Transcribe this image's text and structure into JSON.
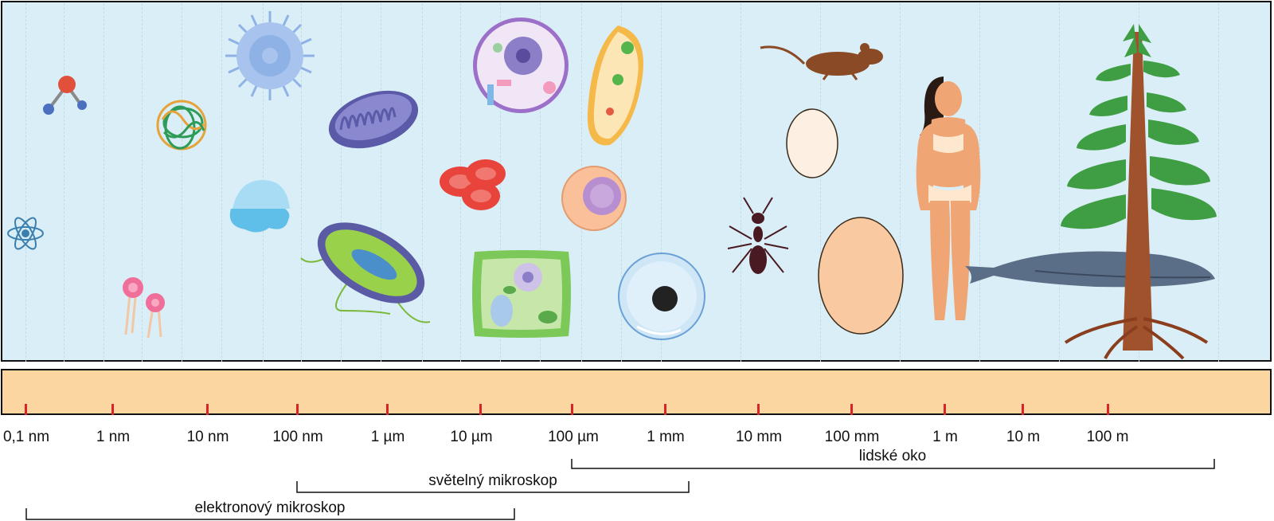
{
  "scale": {
    "ticks": [
      "0,1 nm",
      "1 nm",
      "10 nm",
      "100 nm",
      "1 µm",
      "10 µm",
      "100 µm",
      "1 mm",
      "10 mm",
      "100 mm",
      "1 m",
      "10 m",
      "100 m"
    ]
  },
  "ranges": {
    "eye": "lidské oko",
    "light_microscope": "světelný mikroskop",
    "electron_microscope": "elektronový mikroskop"
  },
  "objects": [
    "atom-icon",
    "molecule-icon",
    "lipid-icon",
    "protein-icon",
    "virus-icon",
    "capsid-icon",
    "mitochondrion-icon",
    "bacterium-icon",
    "red-blood-cells-icon",
    "animal-cell-icon",
    "paramecium-icon",
    "white-blood-cell-icon",
    "plant-cell-icon",
    "egg-cell-icon",
    "mouse-icon",
    "ant-icon",
    "chicken-egg-icon",
    "ostrich-egg-icon",
    "human-icon",
    "whale-icon",
    "tree-icon"
  ],
  "colors": {
    "panel": "#d9eef6",
    "band": "#fbd6a0",
    "tick": "#d8232a"
  }
}
